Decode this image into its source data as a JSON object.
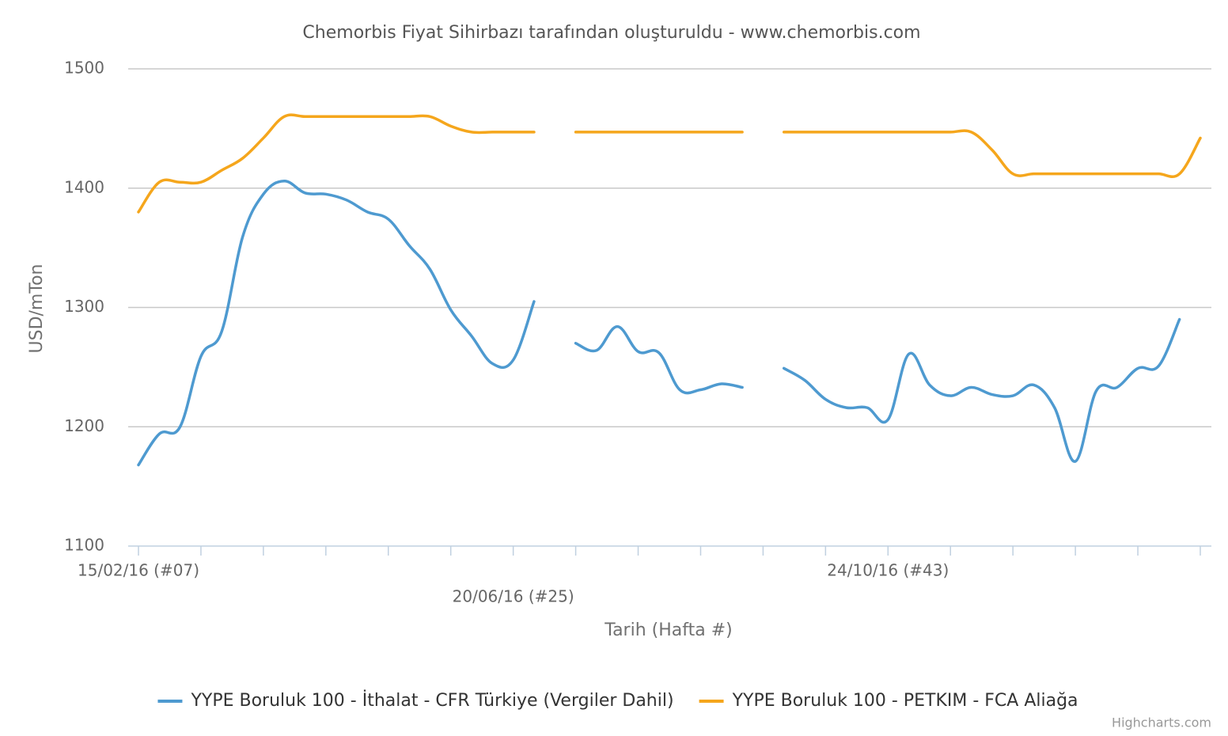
{
  "chart_data": {
    "type": "line",
    "title": "Chemorbis Fiyat Sihirbazı tarafından oluşturuldu - www.chemorbis.com",
    "y_label": "USD/mTon",
    "x_label": "Tarih (Hafta #)",
    "credits": "Highcharts.com",
    "categories": [
      "15/02/16 (#07)",
      null,
      null,
      null,
      null,
      null,
      null,
      null,
      null,
      null,
      null,
      null,
      null,
      null,
      null,
      null,
      null,
      null,
      "20/06/16 (#25)",
      null,
      null,
      null,
      null,
      null,
      null,
      null,
      null,
      null,
      null,
      null,
      null,
      null,
      null,
      null,
      null,
      null,
      "24/10/16 (#43)",
      null,
      null,
      null,
      null,
      null,
      null,
      null,
      null,
      null,
      null,
      null,
      null,
      null,
      null,
      null
    ],
    "series": [
      {
        "name": "YYPE Boruluk 100 - İthalat - CFR Türkiye (Vergiler Dahil)",
        "color": "#4e9ad0",
        "values": [
          1168,
          1194,
          1200,
          1259,
          1280,
          1359,
          1395,
          1406,
          1396,
          1395,
          1390,
          1380,
          1374,
          1352,
          1332,
          1298,
          1276,
          1253,
          1256,
          1305,
          null,
          1270,
          1264,
          1284,
          1263,
          1262,
          1231,
          1231,
          1236,
          1233,
          null,
          1249,
          1239,
          1223,
          1216,
          1216,
          1206,
          1261,
          1235,
          1226,
          1233,
          1227,
          1226,
          1235,
          1216,
          1171,
          1230,
          1233,
          1249,
          1251,
          1290,
          null
        ]
      },
      {
        "name": "YYPE Boruluk 100 - PETKIM - FCA Aliağa",
        "color": "#f5a61c",
        "values": [
          1380,
          1405,
          1405,
          1405,
          1415,
          1425,
          1442,
          1460,
          1460,
          1460,
          1460,
          1460,
          1460,
          1460,
          1460,
          1452,
          1447,
          1447,
          1447,
          1447,
          null,
          1447,
          1447,
          1447,
          1447,
          1447,
          1447,
          1447,
          1447,
          1447,
          null,
          1447,
          1447,
          1447,
          1447,
          1447,
          1447,
          1447,
          1447,
          1447,
          1447,
          1432,
          1412,
          1412,
          1412,
          1412,
          1412,
          1412,
          1412,
          1412,
          1412,
          1442
        ]
      }
    ],
    "ylim": [
      1100,
      1500
    ],
    "yticks": [
      1100,
      1200,
      1300,
      1400,
      1500
    ],
    "grid": true
  }
}
